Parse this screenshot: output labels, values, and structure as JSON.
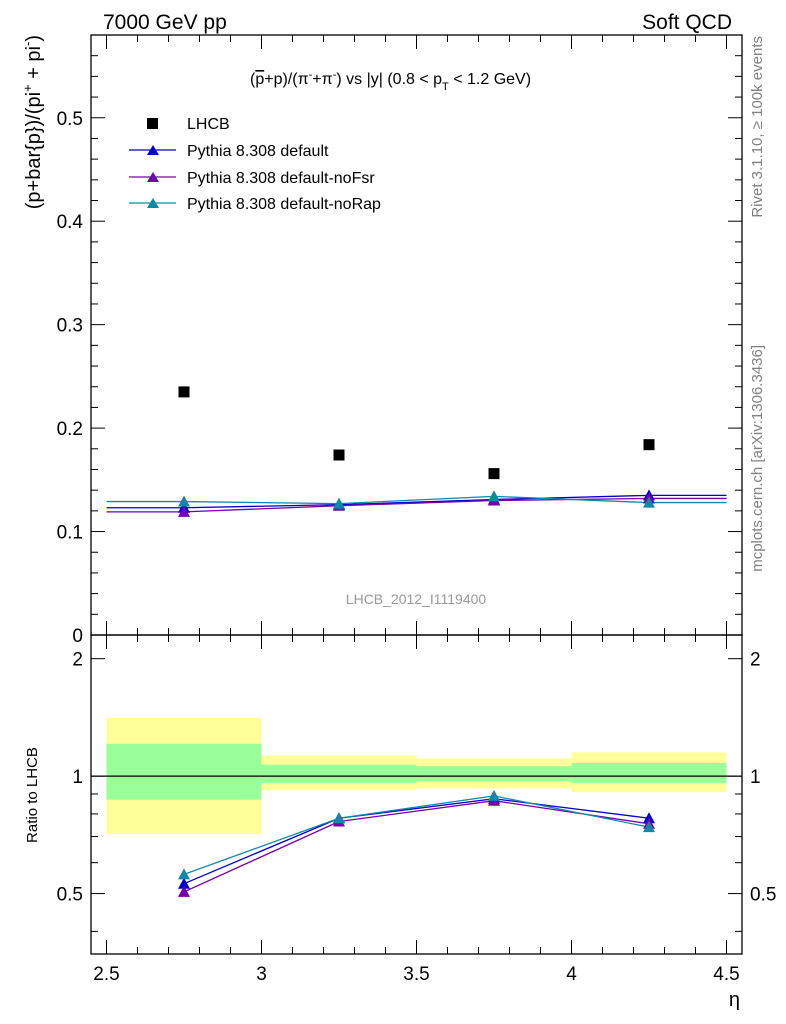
{
  "header": {
    "left": "7000 GeV pp",
    "right": "Soft QCD"
  },
  "side_labels": {
    "rivet": "Rivet 3.1.10, ≥ 100k events",
    "mcplots": "mcplots.cern.ch [arXiv:1306.3436]"
  },
  "colors": {
    "data": "#000000",
    "default": "#0000cc",
    "noFsr": "#7700aa",
    "noRap": "#1188aa",
    "band_outer": "#ffff99",
    "band_inner": "#99ff99"
  },
  "chart_data": [
    {
      "type": "scatter",
      "title_parts": {
        "t1": "(",
        "pbar": "p",
        "t2": "+p)/(π",
        "sup1": "-",
        "t3": "+π",
        "sup2": "-",
        "t4": ") vs |y| (0.8 < p",
        "sub": "T",
        "t5": " < 1.2 GeV)"
      },
      "ylabel_parts": {
        "a": "(p+bar{p})/(pi",
        "sup1": "+",
        "b": " + pi",
        "sup2": "-",
        "c": ")"
      },
      "ylim": [
        0,
        0.58
      ],
      "xlim": [
        2.45,
        4.55
      ],
      "yticks": [
        {
          "v": 0.1,
          "label": "0.1"
        },
        {
          "v": 0.2,
          "label": "0.2"
        },
        {
          "v": 0.3,
          "label": "0.3"
        },
        {
          "v": 0.4,
          "label": "0.4"
        },
        {
          "v": 0.5,
          "label": "0.5"
        },
        {
          "v": 0.0,
          "label": "0"
        }
      ],
      "watermark": "LHCB_2012_I1119400",
      "legend": [
        {
          "key": "data",
          "label": "LHCB"
        },
        {
          "key": "default",
          "label": "Pythia 8.308 default"
        },
        {
          "key": "noFsr",
          "label": "Pythia 8.308 default-noFsr"
        },
        {
          "key": "noRap",
          "label": "Pythia 8.308 default-noRap"
        }
      ],
      "data_points": {
        "x": [
          2.75,
          3.25,
          3.75,
          4.25
        ],
        "y": [
          0.235,
          0.174,
          0.156,
          0.184
        ]
      },
      "series": [
        {
          "key": "default",
          "x": [
            2.75,
            3.25,
            3.75,
            4.25
          ],
          "y": [
            0.123,
            0.126,
            0.131,
            0.135
          ]
        },
        {
          "key": "noFsr",
          "x": [
            2.75,
            3.25,
            3.75,
            4.25
          ],
          "y": [
            0.119,
            0.125,
            0.13,
            0.132
          ]
        },
        {
          "key": "noRap",
          "x": [
            2.75,
            3.25,
            3.75,
            4.25
          ],
          "y": [
            0.129,
            0.127,
            0.134,
            0.128
          ]
        }
      ]
    },
    {
      "type": "line",
      "ylabel": "Ratio to LHCB",
      "xlabel": "η",
      "ylim": [
        0.35,
        2.3
      ],
      "xlim": [
        2.45,
        4.55
      ],
      "yticks": [
        {
          "v": 0.5,
          "label": "0.5"
        },
        {
          "v": 1,
          "label": "1"
        },
        {
          "v": 2,
          "label": "2"
        }
      ],
      "xticks": [
        {
          "v": 2.5,
          "label": "2.5"
        },
        {
          "v": 3,
          "label": "3"
        },
        {
          "v": 3.5,
          "label": "3.5"
        },
        {
          "v": 4,
          "label": "4"
        },
        {
          "v": 4.5,
          "label": "4.5"
        }
      ],
      "bands": [
        {
          "x0": 2.5,
          "x1": 3.0,
          "outer": [
            0.71,
            1.41
          ],
          "inner": [
            0.87,
            1.21
          ]
        },
        {
          "x0": 3.0,
          "x1": 3.5,
          "outer": [
            0.92,
            1.13
          ],
          "inner": [
            0.96,
            1.07
          ]
        },
        {
          "x0": 3.5,
          "x1": 4.0,
          "outer": [
            0.93,
            1.11
          ],
          "inner": [
            0.97,
            1.06
          ]
        },
        {
          "x0": 4.0,
          "x1": 4.5,
          "outer": [
            0.91,
            1.15
          ],
          "inner": [
            0.96,
            1.08
          ]
        }
      ],
      "series": [
        {
          "key": "default",
          "x": [
            2.75,
            3.25,
            3.75,
            4.25
          ],
          "y": [
            0.53,
            0.78,
            0.875,
            0.78
          ]
        },
        {
          "key": "noFsr",
          "x": [
            2.75,
            3.25,
            3.75,
            4.25
          ],
          "y": [
            0.505,
            0.765,
            0.865,
            0.755
          ]
        },
        {
          "key": "noRap",
          "x": [
            2.75,
            3.25,
            3.75,
            4.25
          ],
          "y": [
            0.56,
            0.78,
            0.89,
            0.74
          ]
        }
      ]
    }
  ]
}
